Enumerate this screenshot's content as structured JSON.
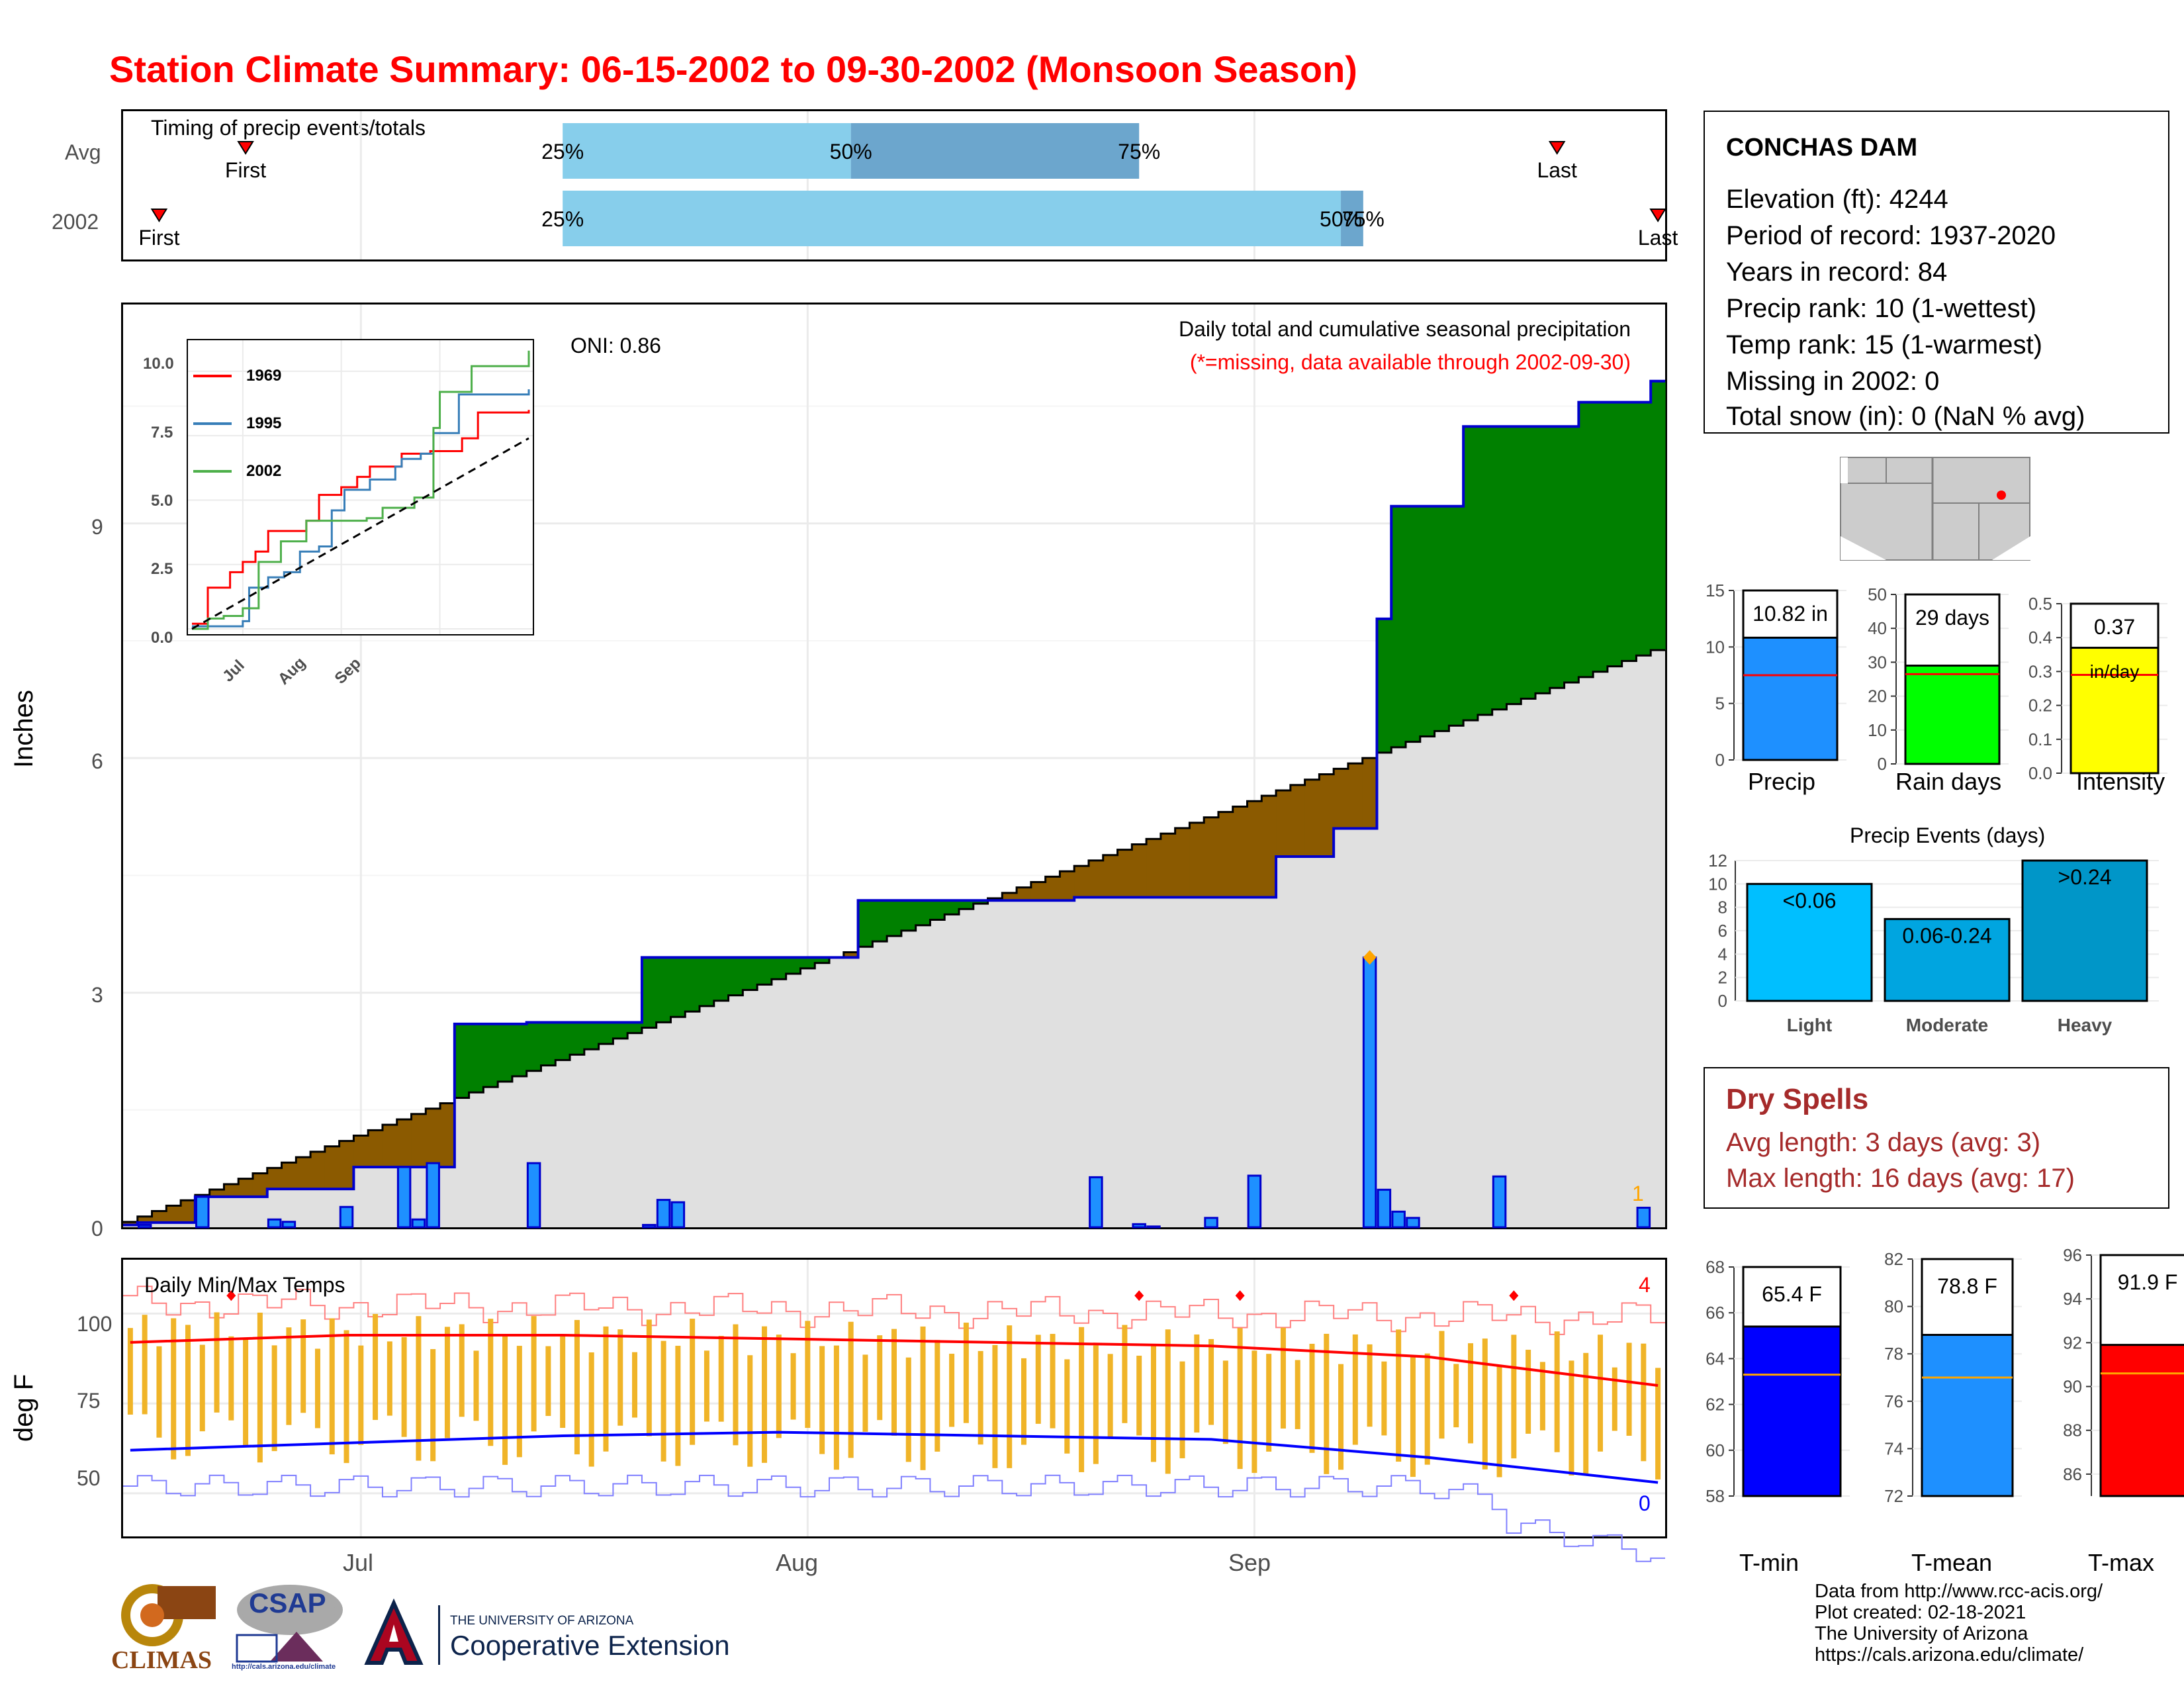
{
  "page_title": "Station Climate Summary: 06-15-2002 to 09-30-2002 (Monsoon Season)",
  "colors": {
    "title": "#ff0000",
    "above_avg_fill": "#008000",
    "below_avg_fill": "#8b5a00",
    "avg_fill": "#e0e0e0",
    "daily_bar": "#1e90ff",
    "year_line": "#0000cd",
    "temp_bar": "#f0b428",
    "tmax_line": "#ff0000",
    "tmin_line": "#0000ff",
    "timing_light": "#87ceeb",
    "timing_dark": "#6ca6cd"
  },
  "timing": {
    "title": "Timing of precip events/totals",
    "rows": [
      {
        "label": "Avg",
        "first": "First",
        "last": "Last",
        "p25": "25%",
        "p50": "50%",
        "p75": "75%",
        "first_day": 8,
        "last_day": 99,
        "q25_day": 30,
        "q50_day": 50,
        "q75_day": 70
      },
      {
        "label": "2002",
        "first": "First",
        "last": "Last",
        "p25": "25%",
        "p50": "50%",
        "p75": "75%",
        "first_day": 2,
        "last_day": 106,
        "q25_day": 30,
        "q50_day": 84,
        "q75_day": 85
      }
    ]
  },
  "main": {
    "ylabel": "Inches",
    "yticks": [
      "0",
      "3",
      "6",
      "9"
    ],
    "oni": "ONI: 0.86",
    "subtitle": "Daily total and cumulative seasonal precipitation",
    "missing_note": "(*=missing, data available through 2002-09-30)",
    "missing_count": "1"
  },
  "inset": {
    "yticks": [
      "0.0",
      "2.5",
      "5.0",
      "7.5",
      "10.0"
    ],
    "xticks": [
      "Jul",
      "Aug",
      "Sep"
    ],
    "legend": [
      {
        "name": "1969",
        "color": "#ff0000"
      },
      {
        "name": "1995",
        "color": "#377eb8"
      },
      {
        "name": "2002",
        "color": "#4daf4a"
      }
    ]
  },
  "temps": {
    "title": "Daily Min/Max Temps",
    "ylabel": "deg F",
    "yticks": [
      "50",
      "75",
      "100"
    ],
    "high_count": "4",
    "low_count": "0",
    "xticks": [
      "Jul",
      "Aug",
      "Sep"
    ]
  },
  "station": {
    "name": "CONCHAS DAM",
    "lines": [
      "Elevation (ft): 4244",
      "Period of record: 1937-2020",
      "Years in record: 84",
      "Precip rank: 10 (1-wettest)",
      "Temp rank: 15 (1-warmest)",
      "Missing in 2002: 0",
      "Total snow (in): 0 (NaN % avg)"
    ]
  },
  "summary_bars": [
    {
      "label": "Precip",
      "value_text": "10.82 in",
      "value": 10.82,
      "avg": 7.5,
      "max": 15,
      "yticks": [
        "0",
        "5",
        "10",
        "15"
      ],
      "color": "#1e90ff"
    },
    {
      "label": "Rain days",
      "value_text": "29 days",
      "value": 29,
      "avg": 26.5,
      "max": 50,
      "yticks": [
        "0",
        "10",
        "20",
        "30",
        "40",
        "50"
      ],
      "color": "#00ff00"
    },
    {
      "label": "Intensity",
      "value_text": "0.37",
      "value_text2": "in/day",
      "value": 0.37,
      "avg": 0.29,
      "max": 0.5,
      "yticks": [
        "0.0",
        "0.1",
        "0.2",
        "0.3",
        "0.4",
        "0.5"
      ],
      "color": "#ffff00"
    }
  ],
  "events": {
    "title": "Precip Events (days)",
    "yticks": [
      "0",
      "2",
      "4",
      "6",
      "8",
      "10",
      "12"
    ],
    "bars": [
      {
        "label": "Light",
        "text": "<0.06",
        "value": 10,
        "color": "#00bfff"
      },
      {
        "label": "Moderate",
        "text": "0.06-0.24",
        "value": 7,
        "color": "#00a5e0"
      },
      {
        "label": "Heavy",
        "text": ">0.24",
        "value": 12,
        "color": "#0096c8"
      }
    ]
  },
  "dry_spells": {
    "title": "Dry Spells",
    "avg_line": "Avg length: 3 days (avg: 3)",
    "max_line": "Max length: 16 days (avg: 17)"
  },
  "temp_bars": [
    {
      "label": "T-min",
      "value_text": "65.4 F",
      "value": 65.4,
      "avg": 63.3,
      "min": 58,
      "max": 68,
      "yticks": [
        "58",
        "60",
        "62",
        "64",
        "66",
        "68"
      ],
      "color": "#0000ff"
    },
    {
      "label": "T-mean",
      "value_text": "78.8 F",
      "value": 78.8,
      "avg": 77.0,
      "min": 72,
      "max": 82,
      "yticks": [
        "72",
        "74",
        "76",
        "78",
        "80",
        "82"
      ],
      "color": "#1e90ff"
    },
    {
      "label": "T-max",
      "value_text": "91.9 F",
      "value": 91.9,
      "avg": 90.6,
      "min": 85,
      "max": 96,
      "yticks": [
        "86",
        "88",
        "90",
        "92",
        "94",
        "96"
      ],
      "color": "#ff0000"
    }
  ],
  "footer": {
    "lines": [
      "Data from http://www.rcc-acis.org/",
      "Plot created: 02-18-2021",
      "The University of Arizona",
      "https://cals.arizona.edu/climate/"
    ],
    "logo_climas": "CLIMAS",
    "logo_csap": "CSAP",
    "logo_csap_url": "http://cals.arizona.edu/climate",
    "ua_line1": "THE UNIVERSITY OF ARIZONA",
    "ua_line2": "Cooperative Extension"
  },
  "chart_data": [
    {
      "type": "area",
      "title": "Daily total and cumulative seasonal precipitation",
      "ylabel": "Inches",
      "ylim": [
        0,
        11.8
      ],
      "x_range": [
        "2002-06-15",
        "2002-09-30"
      ],
      "xticks": [
        "Jul",
        "Aug",
        "Sep"
      ],
      "grid": true,
      "series": [
        {
          "name": "2002",
          "kind": "cumulative",
          "x": [
            "06-15",
            "06-16",
            "06-20",
            "06-25",
            "07-01",
            "07-08",
            "07-13",
            "07-21",
            "08-05",
            "08-20",
            "09-03",
            "09-07",
            "09-10",
            "09-11",
            "09-16",
            "09-24",
            "09-29"
          ],
          "values": [
            0.03,
            0.06,
            0.39,
            0.49,
            0.77,
            2.6,
            2.62,
            3.45,
            4.18,
            4.22,
            4.74,
            5.1,
            7.78,
            9.22,
            10.24,
            10.55,
            10.82
          ]
        }
      ],
      "daily_bars": {
        "x": [
          "06-16",
          "06-20",
          "06-25",
          "06-26",
          "06-30",
          "07-04",
          "07-05",
          "07-06",
          "07-13",
          "07-21",
          "07-22",
          "07-23",
          "08-21",
          "08-24",
          "08-25",
          "08-29",
          "09-01",
          "09-09",
          "09-10",
          "09-11",
          "09-12",
          "09-18",
          "09-28"
        ],
        "values": [
          0.03,
          0.39,
          0.1,
          0.07,
          0.26,
          0.77,
          0.1,
          0.82,
          0.82,
          0.03,
          0.35,
          0.32,
          0.64,
          0.04,
          0.01,
          0.12,
          0.66,
          3.45,
          0.48,
          0.2,
          0.12,
          0.65,
          0.25
        ]
      }
    },
    {
      "type": "line",
      "title": "",
      "ylim": [
        0,
        11
      ],
      "xticks": [
        "Jul",
        "Aug",
        "Sep"
      ],
      "series": [
        {
          "name": "1969",
          "x": [
            0,
            5,
            6,
            12,
            16,
            20,
            24,
            36,
            40,
            47,
            52,
            56,
            66,
            75,
            85,
            90,
            106
          ],
          "values": [
            0.2,
            1.6,
            1.6,
            2.2,
            2.6,
            3.0,
            3.8,
            4.2,
            5.2,
            5.5,
            5.9,
            6.3,
            6.8,
            6.9,
            7.4,
            8.4,
            8.5
          ]
        },
        {
          "name": "1995",
          "x": [
            0,
            8,
            16,
            18,
            24,
            29,
            34,
            40,
            44,
            48,
            56,
            64,
            66,
            72,
            76,
            84,
            106
          ],
          "values": [
            0.1,
            0.1,
            0.3,
            1.6,
            2.0,
            2.2,
            3.0,
            3.2,
            4.6,
            5.4,
            5.8,
            6.3,
            6.6,
            6.8,
            7.6,
            9.1,
            9.3
          ]
        },
        {
          "name": "2002",
          "x": [
            0,
            5,
            10,
            16,
            21,
            28,
            36,
            46,
            55,
            60,
            66,
            70,
            76,
            78,
            86,
            88,
            106
          ],
          "values": [
            0.0,
            0.4,
            0.5,
            0.8,
            2.6,
            3.4,
            4.2,
            4.2,
            4.3,
            4.7,
            4.7,
            5.1,
            7.8,
            9.2,
            9.2,
            10.2,
            10.8
          ]
        },
        {
          "name": "average",
          "x": [
            0,
            106
          ],
          "values": [
            0,
            7.4
          ]
        }
      ]
    },
    {
      "type": "bar",
      "title": "Daily Min/Max Temps",
      "ylabel": "deg F",
      "ylim": [
        38,
        115
      ],
      "yticks": [
        50,
        75,
        100
      ],
      "series": [
        {
          "name": "tmax_avg",
          "x": [
            0,
            15,
            30,
            45,
            60,
            75,
            90,
            106
          ],
          "values": [
            92,
            94,
            94,
            93,
            92,
            91,
            88,
            80
          ]
        },
        {
          "name": "tmin_avg",
          "x": [
            0,
            15,
            30,
            45,
            60,
            75,
            90,
            106
          ],
          "values": [
            62,
            64,
            66,
            67,
            66,
            65,
            60,
            53
          ]
        }
      ]
    },
    {
      "type": "bar",
      "categories": [
        "Precip",
        "Rain days",
        "Intensity"
      ],
      "values": [
        10.82,
        29,
        0.37
      ]
    },
    {
      "type": "bar",
      "title": "Precip Events (days)",
      "categories": [
        "Light",
        "Moderate",
        "Heavy"
      ],
      "values": [
        10,
        7,
        12
      ],
      "ylim": [
        0,
        12
      ]
    },
    {
      "type": "bar",
      "categories": [
        "T-min",
        "T-mean",
        "T-max"
      ],
      "values": [
        65.4,
        78.8,
        91.9
      ]
    }
  ]
}
